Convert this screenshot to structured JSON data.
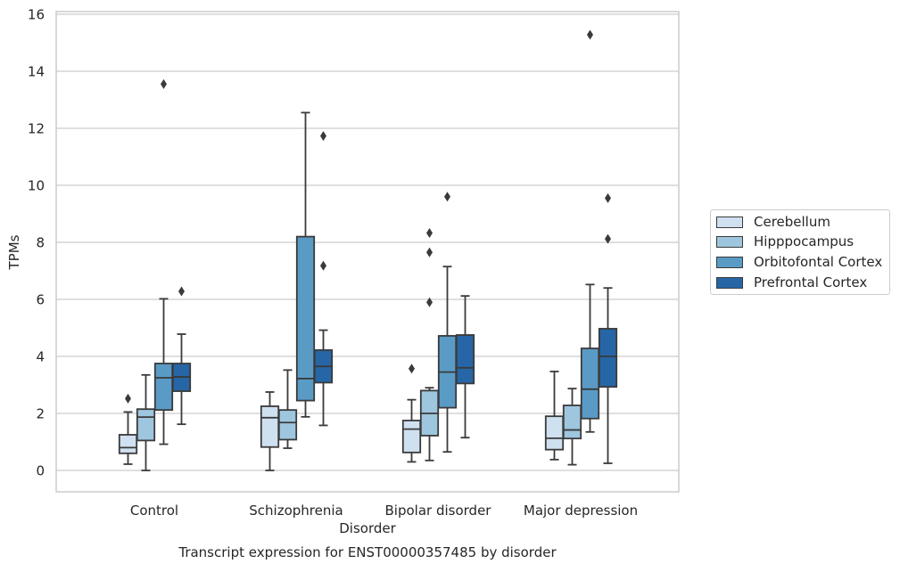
{
  "chart_data": {
    "type": "box",
    "title": "Transcript expression for ENST00000357485 by disorder",
    "xlabel": "Disorder",
    "ylabel": "TPMs",
    "ylim": [
      -0.75,
      16.1
    ],
    "yticks": [
      0,
      2,
      4,
      6,
      8,
      10,
      12,
      14,
      16
    ],
    "grid": true,
    "legend_position": "right",
    "categories": [
      "Control",
      "Schizophrenia",
      "Bipolar disorder",
      "Major depression"
    ],
    "series": [
      {
        "name": "Cerebellum",
        "color": "#cfe0f0",
        "boxes": [
          {
            "whisker_low": 0.22,
            "q1": 0.6,
            "median": 0.8,
            "q3": 1.25,
            "whisker_high": 2.05,
            "outliers": [
              2.52
            ]
          },
          {
            "whisker_low": 0.0,
            "q1": 0.82,
            "median": 1.85,
            "q3": 2.25,
            "whisker_high": 2.75,
            "outliers": []
          },
          {
            "whisker_low": 0.3,
            "q1": 0.63,
            "median": 1.45,
            "q3": 1.75,
            "whisker_high": 2.48,
            "outliers": [
              3.57
            ]
          },
          {
            "whisker_low": 0.38,
            "q1": 0.73,
            "median": 1.13,
            "q3": 1.9,
            "whisker_high": 3.47,
            "outliers": []
          }
        ]
      },
      {
        "name": "Hipppocampus",
        "color": "#9ec6de",
        "boxes": [
          {
            "whisker_low": 0.0,
            "q1": 1.05,
            "median": 1.87,
            "q3": 2.15,
            "whisker_high": 3.35,
            "outliers": []
          },
          {
            "whisker_low": 0.78,
            "q1": 1.08,
            "median": 1.68,
            "q3": 2.12,
            "whisker_high": 3.52,
            "outliers": []
          },
          {
            "whisker_low": 0.35,
            "q1": 1.22,
            "median": 2.0,
            "q3": 2.8,
            "whisker_high": 2.9,
            "outliers": [
              5.9,
              7.65,
              8.33
            ]
          },
          {
            "whisker_low": 0.2,
            "q1": 1.12,
            "median": 1.42,
            "q3": 2.28,
            "whisker_high": 2.87,
            "outliers": []
          }
        ]
      },
      {
        "name": "Orbitofontal Cortex",
        "color": "#5a9bc6",
        "boxes": [
          {
            "whisker_low": 0.92,
            "q1": 2.12,
            "median": 3.25,
            "q3": 3.75,
            "whisker_high": 6.02,
            "outliers": [
              13.55
            ]
          },
          {
            "whisker_low": 1.88,
            "q1": 2.45,
            "median": 3.22,
            "q3": 8.2,
            "whisker_high": 12.55,
            "outliers": []
          },
          {
            "whisker_low": 0.65,
            "q1": 2.2,
            "median": 3.45,
            "q3": 4.72,
            "whisker_high": 7.15,
            "outliers": [
              9.6
            ]
          },
          {
            "whisker_low": 1.35,
            "q1": 1.82,
            "median": 2.85,
            "q3": 4.28,
            "whisker_high": 6.52,
            "outliers": [
              15.28
            ]
          }
        ]
      },
      {
        "name": "Prefrontal Cortex",
        "color": "#2766a6",
        "boxes": [
          {
            "whisker_low": 1.62,
            "q1": 2.78,
            "median": 3.28,
            "q3": 3.75,
            "whisker_high": 4.78,
            "outliers": [
              6.28
            ]
          },
          {
            "whisker_low": 1.58,
            "q1": 3.08,
            "median": 3.65,
            "q3": 4.22,
            "whisker_high": 4.92,
            "outliers": [
              7.18,
              11.73
            ]
          },
          {
            "whisker_low": 1.15,
            "q1": 3.05,
            "median": 3.6,
            "q3": 4.75,
            "whisker_high": 6.12,
            "outliers": []
          },
          {
            "whisker_low": 0.25,
            "q1": 2.93,
            "median": 4.0,
            "q3": 4.97,
            "whisker_high": 6.4,
            "outliers": [
              8.12,
              9.55
            ]
          }
        ]
      }
    ]
  }
}
